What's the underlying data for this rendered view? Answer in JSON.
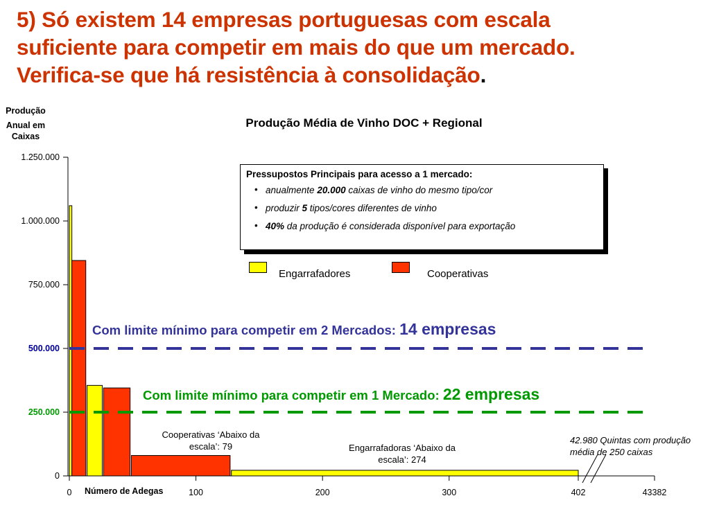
{
  "slide": {
    "title_line1": "5) Só existem 14 empresas portuguesas com escala",
    "title_line2": "suficiente para competir em mais do que um mercado.",
    "title_line3": "Verifica-se que há resistência à consolidação",
    "title_period": "."
  },
  "assumptions": {
    "title": "Pressupostos Principais para acesso a 1 mercado:",
    "items": [
      {
        "pre": "anualmente ",
        "bold": "20.000",
        "post": " caixas de vinho do mesmo tipo/cor"
      },
      {
        "pre": "produzir ",
        "bold": "5",
        "post": " tipos/cores diferentes de vinho"
      },
      {
        "pre": "",
        "bold": "40%",
        "post": " da produção é considerada disponível para exportação"
      }
    ]
  },
  "limits": [
    {
      "text": "Com limite mínimo para competir em 2 Mercados: ",
      "big": "14 empresas",
      "color": "#333399",
      "value": 500000
    },
    {
      "text": "Com limite mínimo para competir em 1 Mercado: ",
      "big": "22 empresas",
      "color": "#009900",
      "value": 250000
    }
  ],
  "annotations": {
    "coops_below": "Cooperativas ‘Abaixo da escala’: 79",
    "bottlers_below": "Engarrafadoras ‘Abaixo da escala’: 274",
    "quintas_line1": "42.980 Quintas com produção",
    "quintas_line2": "média de 250 caixas"
  },
  "chart_data": {
    "type": "bar",
    "title": "Produção Média de Vinho DOC + Regional",
    "ylabel_lines": [
      "Produção",
      "Anual em",
      "Caixas"
    ],
    "xlabel": "Número de Adegas",
    "ylim": [
      0,
      1250000
    ],
    "yticks": [
      {
        "value": 0,
        "label": "0",
        "color": "#000000",
        "bold": false
      },
      {
        "value": 250000,
        "label": "250.000",
        "color": "#009900",
        "bold": true
      },
      {
        "value": 500000,
        "label": "500.000",
        "color": "#000099",
        "bold": true
      },
      {
        "value": 750000,
        "label": "750.000",
        "color": "#000000",
        "bold": false
      },
      {
        "value": 1000000,
        "label": "1.000.000",
        "color": "#000000",
        "bold": false
      },
      {
        "value": 1250000,
        "label": "1.250.000",
        "color": "#000000",
        "bold": false
      }
    ],
    "xticks": [
      {
        "value": 0,
        "label": "0"
      },
      {
        "value": 100,
        "label": "100"
      },
      {
        "value": 200,
        "label": "200"
      },
      {
        "value": 300,
        "label": "300"
      },
      {
        "value": 402,
        "label": "402"
      },
      {
        "value": 43382,
        "label": "43382"
      }
    ],
    "legend": [
      {
        "name": "Engarrafadores",
        "color": "#ffff00"
      },
      {
        "name": "Cooperativas",
        "color": "#ff3300"
      }
    ],
    "bars": [
      {
        "series": "Engarrafadores",
        "x0": 0,
        "x1": 2,
        "value": 1060000
      },
      {
        "series": "Cooperativas",
        "x0": 2,
        "x1": 13,
        "value": 845000
      },
      {
        "series": "Engarrafadores",
        "x0": 14,
        "x1": 26,
        "value": 355000
      },
      {
        "series": "Cooperativas",
        "x0": 27,
        "x1": 48,
        "value": 345000
      },
      {
        "series": "Cooperativas",
        "x0": 49,
        "x1": 127,
        "value": 80000
      },
      {
        "series": "Engarrafadores",
        "x0": 128,
        "x1": 402,
        "value": 22000
      }
    ],
    "axis_break": [
      402,
      43382
    ]
  }
}
